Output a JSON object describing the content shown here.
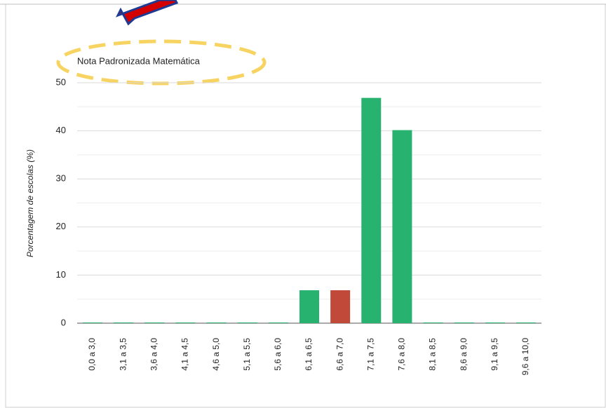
{
  "chart_data": {
    "type": "bar",
    "title": "Nota Padronizada Matemática",
    "y_label": "Porcentagem de escolas (%)",
    "categories": [
      "0,0 a 3,0",
      "3,1 a 3,5",
      "3,6 a 4,0",
      "4,1 a 4,5",
      "4,6 a 5,0",
      "5,1 a 5,5",
      "5,6 a 6,0",
      "6,1 a 6,5",
      "6,6 a 7,0",
      "7,1 a 7,5",
      "7,6 a 8,0",
      "8,1 a 8,5",
      "8,6 a 9,0",
      "9,1 a 9,5",
      "9,6 a 10,0"
    ],
    "values": [
      0,
      0,
      0,
      0,
      0,
      0,
      0,
      6.7,
      6.7,
      46.7,
      40,
      0,
      0,
      0,
      0
    ],
    "colors": [
      "#27b36f",
      "#27b36f",
      "#27b36f",
      "#27b36f",
      "#27b36f",
      "#27b36f",
      "#27b36f",
      "#27b36f",
      "#c0493a",
      "#27b36f",
      "#27b36f",
      "#27b36f",
      "#27b36f",
      "#27b36f",
      "#27b36f"
    ],
    "ylim": [
      0,
      50
    ],
    "yticks": [
      0,
      10,
      20,
      30,
      40,
      50
    ],
    "minor_yticks": [
      5,
      15,
      25,
      35,
      45
    ],
    "grid": true
  }
}
